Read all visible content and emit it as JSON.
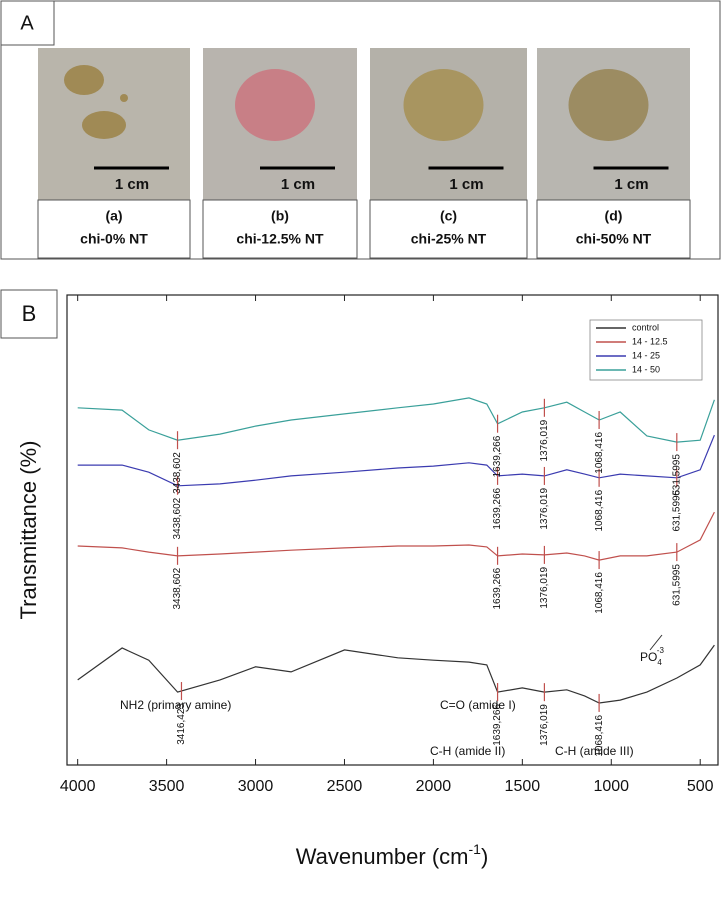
{
  "panel_a": {
    "label": "A",
    "samples": [
      {
        "id": "(a)",
        "name": "chi-0% NT",
        "scale": "1 cm"
      },
      {
        "id": "(b)",
        "name": "chi-12.5% NT",
        "scale": "1 cm"
      },
      {
        "id": "(c)",
        "name": "chi-25% NT",
        "scale": "1 cm"
      },
      {
        "id": "(d)",
        "name": "chi-50% NT",
        "scale": "1 cm"
      }
    ]
  },
  "panel_b": {
    "label": "B",
    "annotations": {
      "nh2": "NH2 (primary amine)",
      "co": "C=O (amide I)",
      "ch2": "C-H (amide II)",
      "ch3": "C-H (amide III)",
      "po4": {
        "base": "PO",
        "sub": "4",
        "sup": "-3"
      }
    }
  },
  "chart_data": {
    "type": "line",
    "y_label": "Transmittance (%)",
    "x_label": {
      "text": "Wavenumber (cm",
      "sup": "-1",
      "end": ")"
    },
    "xlim": [
      4060,
      400
    ],
    "xticks": [
      4000,
      3500,
      3000,
      2500,
      2000,
      1500,
      1000,
      500
    ],
    "ylim": [
      0,
      100
    ],
    "legend": "top-right",
    "x": [
      4000,
      3750,
      3600,
      3438,
      3200,
      3000,
      2800,
      2500,
      2200,
      2000,
      1800,
      1700,
      1639,
      1500,
      1376,
      1250,
      1150,
      1068,
      950,
      800,
      631,
      500,
      420
    ],
    "series": [
      {
        "name": "control",
        "color": "#333333",
        "values": [
          18.1,
          24.9,
          22.3,
          15.5,
          18.1,
          20.9,
          19.8,
          24.5,
          22.8,
          22.3,
          21.9,
          21.3,
          15.5,
          16.4,
          15.5,
          16.0,
          14.7,
          13.2,
          13.8,
          15.5,
          18.5,
          21.3,
          25.5
        ],
        "peaks": [
          {
            "value": 3416.423,
            "label": "3416,423"
          },
          {
            "value": 1639.266,
            "label": "1639,266"
          },
          {
            "value": 1376.019,
            "label": "1376,019"
          },
          {
            "value": 1068.416,
            "label": "1068,416"
          }
        ]
      },
      {
        "name": "14 - 12.5",
        "color": "#c0504d",
        "values": [
          46.6,
          46.2,
          45.3,
          44.5,
          44.9,
          45.3,
          45.7,
          46.2,
          46.6,
          46.6,
          46.8,
          46.4,
          44.5,
          44.9,
          44.7,
          45.1,
          44.5,
          43.6,
          44.5,
          44.5,
          45.3,
          47.9,
          53.8
        ],
        "peaks": [
          {
            "value": 3438.602,
            "label": "3438,602"
          },
          {
            "value": 1639.266,
            "label": "1639,266"
          },
          {
            "value": 1376.019,
            "label": "1376,019"
          },
          {
            "value": 1068.416,
            "label": "1068,416"
          },
          {
            "value": 631.5995,
            "label": "631,5995"
          }
        ]
      },
      {
        "name": "14 - 25",
        "color": "#3b3bb0",
        "values": [
          63.8,
          63.8,
          62.3,
          59.4,
          59.8,
          60.6,
          61.5,
          62.3,
          63.2,
          63.6,
          64.3,
          63.8,
          61.5,
          61.9,
          61.5,
          62.8,
          61.9,
          61.1,
          61.9,
          61.5,
          61.1,
          62.8,
          70.2
        ],
        "peaks": [
          {
            "value": 3438.602,
            "label": "3438,602"
          },
          {
            "value": 1639.266,
            "label": "1639,266"
          },
          {
            "value": 1376.019,
            "label": "1376,019"
          },
          {
            "value": 1068.416,
            "label": "1068,416"
          },
          {
            "value": 631.5995,
            "label": "631,5995"
          }
        ]
      },
      {
        "name": "14 - 50",
        "color": "#3aa09a",
        "values": [
          76.0,
          75.5,
          71.3,
          69.1,
          70.4,
          72.1,
          73.4,
          74.7,
          76.0,
          76.8,
          78.1,
          76.8,
          72.6,
          75.1,
          76.0,
          77.2,
          75.1,
          73.4,
          75.1,
          70.0,
          68.7,
          69.1,
          77.7
        ],
        "peaks": [
          {
            "value": 3438.602,
            "label": "3438,602"
          },
          {
            "value": 1639.266,
            "label": "1639,266"
          },
          {
            "value": 1376.019,
            "label": "1376,019"
          },
          {
            "value": 1068.416,
            "label": "1068,416"
          },
          {
            "value": 631.5995,
            "label": "631,5995"
          }
        ]
      }
    ]
  }
}
